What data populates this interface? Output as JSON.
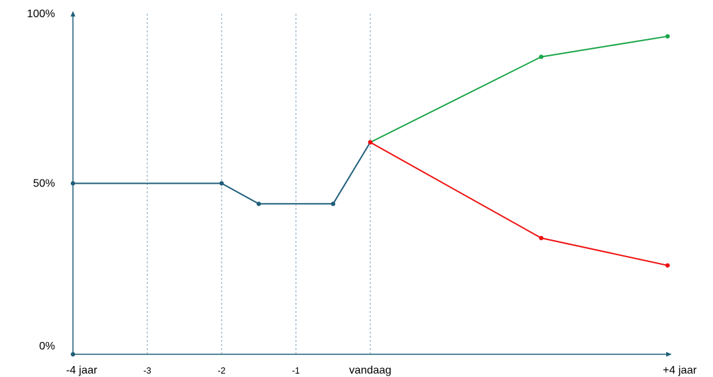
{
  "chart_data": {
    "type": "line",
    "title": "",
    "xlabel": "",
    "ylabel": "",
    "xlim": [
      -4,
      4
    ],
    "ylim": [
      0,
      100
    ],
    "grid": "dashed vertical at x = -3, -2, -1, 0",
    "x_ticks": [
      {
        "x": -4,
        "label": "-4 jaar"
      },
      {
        "x": -3,
        "label": "-3"
      },
      {
        "x": -2,
        "label": "-2"
      },
      {
        "x": -1,
        "label": "-1"
      },
      {
        "x": 0,
        "label": "vandaag"
      },
      {
        "x": 4,
        "label": "+4 jaar"
      }
    ],
    "y_ticks": [
      {
        "y": 0,
        "label": "0%"
      },
      {
        "y": 50,
        "label": "50%"
      },
      {
        "y": 100,
        "label": "100%"
      }
    ],
    "series": [
      {
        "color": "#1f5f7a",
        "points": [
          [
            -4,
            50
          ],
          [
            -2,
            50
          ],
          [
            -1.5,
            44
          ],
          [
            -0.5,
            44
          ],
          [
            0,
            62
          ]
        ]
      },
      {
        "color": "#1aa64a",
        "points": [
          [
            0,
            62
          ],
          [
            2.3,
            87
          ],
          [
            4,
            93
          ]
        ]
      },
      {
        "color": "#ee1111",
        "points": [
          [
            0,
            62
          ],
          [
            2.3,
            34
          ],
          [
            4,
            26
          ]
        ]
      }
    ]
  }
}
